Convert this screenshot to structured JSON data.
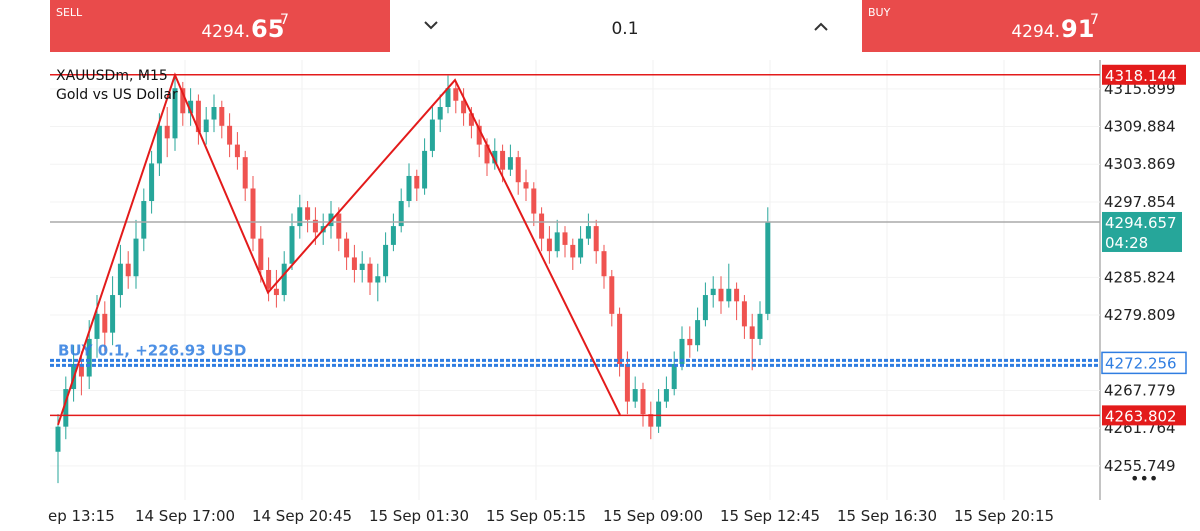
{
  "header": {
    "sell": {
      "label": "SELL",
      "price_main": "4294.",
      "price_big": "65",
      "price_sup": "7"
    },
    "volume": "0.1",
    "buy": {
      "label": "BUY",
      "price_main": "4294.",
      "price_big": "91",
      "price_sup": "7"
    }
  },
  "chart_data": {
    "type": "candlestick",
    "symbol": "XAUUSDm, M15",
    "description": "Gold vs US Dollar",
    "categories": [
      "ep 13:15",
      "14 Sep 17:00",
      "14 Sep 20:45",
      "15 Sep 01:30",
      "15 Sep 05:15",
      "15 Sep 09:00",
      "15 Sep 12:45",
      "15 Sep 16:30",
      "15 Sep 20:15"
    ],
    "ylim": [
      4250.3,
      4320.5
    ],
    "yticks": [
      {
        "value": 4315.899,
        "label": "4315.899"
      },
      {
        "value": 4309.884,
        "label": "4309.884"
      },
      {
        "value": 4303.869,
        "label": "4303.869"
      },
      {
        "value": 4297.854,
        "label": "4297.854"
      },
      {
        "value": 4285.824,
        "label": "4285.824"
      },
      {
        "value": 4279.809,
        "label": "4279.809"
      },
      {
        "value": 4267.779,
        "label": "4267.779"
      },
      {
        "value": 4261.764,
        "label": "4261.764"
      },
      {
        "value": 4255.749,
        "label": "4255.749"
      }
    ],
    "up_color": "#26a69a",
    "down_color": "#ef5350",
    "candles": [
      [
        4258,
        4264,
        4253,
        4262
      ],
      [
        4262,
        4270,
        4260,
        4268
      ],
      [
        4268,
        4275,
        4266,
        4272
      ],
      [
        4272,
        4274,
        4267,
        4270
      ],
      [
        4270,
        4279,
        4268,
        4276
      ],
      [
        4276,
        4283,
        4273,
        4280
      ],
      [
        4280,
        4282,
        4274,
        4277
      ],
      [
        4277,
        4286,
        4275,
        4283
      ],
      [
        4283,
        4291,
        4281,
        4288
      ],
      [
        4288,
        4290,
        4284,
        4286
      ],
      [
        4286,
        4295,
        4284,
        4292
      ],
      [
        4292,
        4300,
        4290,
        4298
      ],
      [
        4298,
        4306,
        4296,
        4304
      ],
      [
        4304,
        4312,
        4302,
        4310
      ],
      [
        4310,
        4313,
        4305,
        4308
      ],
      [
        4308,
        4318,
        4306,
        4316
      ],
      [
        4316,
        4317,
        4310,
        4312
      ],
      [
        4312,
        4316,
        4310,
        4314
      ],
      [
        4314,
        4315,
        4307,
        4309
      ],
      [
        4309,
        4313,
        4307,
        4311
      ],
      [
        4311,
        4315,
        4309,
        4313
      ],
      [
        4313,
        4314,
        4308,
        4310
      ],
      [
        4310,
        4312,
        4305,
        4307
      ],
      [
        4307,
        4309,
        4303,
        4305
      ],
      [
        4305,
        4306,
        4298,
        4300
      ],
      [
        4300,
        4302,
        4290,
        4292
      ],
      [
        4292,
        4294,
        4285,
        4287
      ],
      [
        4287,
        4289,
        4282,
        4284
      ],
      [
        4284,
        4287,
        4281,
        4283
      ],
      [
        4283,
        4290,
        4282,
        4288
      ],
      [
        4288,
        4296,
        4287,
        4294
      ],
      [
        4294,
        4299,
        4292,
        4297
      ],
      [
        4297,
        4298,
        4293,
        4295
      ],
      [
        4295,
        4297,
        4291,
        4293
      ],
      [
        4293,
        4296,
        4291,
        4294
      ],
      [
        4294,
        4298,
        4292,
        4296
      ],
      [
        4296,
        4297,
        4290,
        4292
      ],
      [
        4292,
        4293,
        4287,
        4289
      ],
      [
        4289,
        4291,
        4285,
        4287
      ],
      [
        4287,
        4290,
        4285,
        4288
      ],
      [
        4288,
        4289,
        4283,
        4285
      ],
      [
        4285,
        4288,
        4282,
        4286
      ],
      [
        4286,
        4293,
        4285,
        4291
      ],
      [
        4291,
        4296,
        4290,
        4294
      ],
      [
        4294,
        4300,
        4293,
        4298
      ],
      [
        4298,
        4304,
        4297,
        4302
      ],
      [
        4302,
        4303,
        4298,
        4300
      ],
      [
        4300,
        4308,
        4299,
        4306
      ],
      [
        4306,
        4313,
        4305,
        4311
      ],
      [
        4311,
        4315,
        4309,
        4313
      ],
      [
        4313,
        4318,
        4312,
        4316
      ],
      [
        4316,
        4317,
        4312,
        4314
      ],
      [
        4314,
        4316,
        4310,
        4312
      ],
      [
        4312,
        4313,
        4308,
        4310
      ],
      [
        4310,
        4311,
        4305,
        4307
      ],
      [
        4307,
        4308,
        4302,
        4304
      ],
      [
        4304,
        4308,
        4303,
        4306
      ],
      [
        4306,
        4307,
        4301,
        4303
      ],
      [
        4303,
        4307,
        4302,
        4305
      ],
      [
        4305,
        4306,
        4299,
        4301
      ],
      [
        4301,
        4303,
        4298,
        4300
      ],
      [
        4300,
        4301,
        4294,
        4296
      ],
      [
        4296,
        4297,
        4290,
        4292
      ],
      [
        4292,
        4294,
        4288,
        4290
      ],
      [
        4290,
        4295,
        4289,
        4293
      ],
      [
        4293,
        4294,
        4289,
        4291
      ],
      [
        4291,
        4292,
        4287,
        4289
      ],
      [
        4289,
        4294,
        4288,
        4292
      ],
      [
        4292,
        4296,
        4291,
        4294
      ],
      [
        4294,
        4295,
        4288,
        4290
      ],
      [
        4290,
        4291,
        4284,
        4286
      ],
      [
        4286,
        4287,
        4278,
        4280
      ],
      [
        4280,
        4281,
        4270,
        4272
      ],
      [
        4272,
        4274,
        4264,
        4266
      ],
      [
        4266,
        4270,
        4265,
        4268
      ],
      [
        4268,
        4269,
        4262,
        4264
      ],
      [
        4264,
        4266,
        4260,
        4262
      ],
      [
        4262,
        4268,
        4261,
        4266
      ],
      [
        4266,
        4270,
        4265,
        4268
      ],
      [
        4268,
        4274,
        4267,
        4272
      ],
      [
        4272,
        4278,
        4271,
        4276
      ],
      [
        4276,
        4278,
        4273,
        4275
      ],
      [
        4275,
        4281,
        4274,
        4279
      ],
      [
        4279,
        4285,
        4278,
        4283
      ],
      [
        4283,
        4286,
        4281,
        4284
      ],
      [
        4284,
        4286,
        4280,
        4282
      ],
      [
        4282,
        4288,
        4281,
        4284
      ],
      [
        4284,
        4285,
        4279,
        4282
      ],
      [
        4282,
        4283,
        4276,
        4278
      ],
      [
        4278,
        4280,
        4271,
        4276
      ],
      [
        4276,
        4282,
        4275,
        4280
      ],
      [
        4280,
        4297,
        4279,
        4294.657
      ]
    ],
    "levels": [
      {
        "value": 4318.144,
        "label": "4318.144",
        "color": "#e31b1b"
      },
      {
        "value": 4263.802,
        "label": "4263.802",
        "color": "#e31b1b"
      }
    ],
    "current_price": {
      "value": 4294.657,
      "label": "4294.657",
      "timer": "04:28",
      "color": "#26a69a"
    },
    "position": {
      "value": 4272.256,
      "label": "4272.256",
      "text": "BUY 0.1, +226.93 USD",
      "color": "#2f7de1"
    },
    "zigzag": [
      4262.3,
      4318.1,
      4283.4,
      4317.3,
      4263.9
    ],
    "zigzag_color": "#e31b1b"
  }
}
